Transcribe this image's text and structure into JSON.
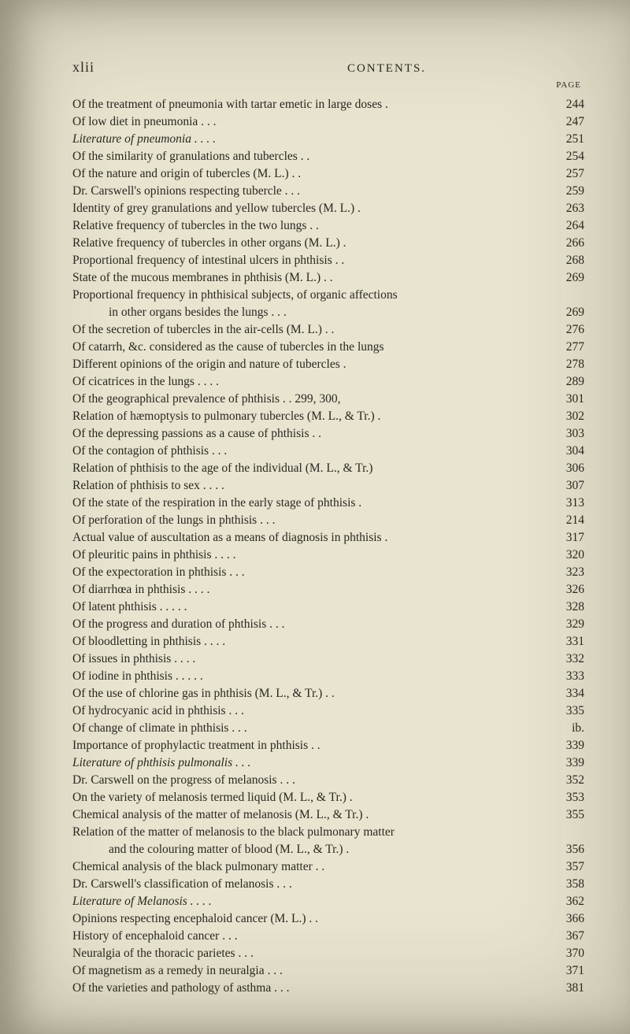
{
  "page": {
    "roman_numeral": "xlii",
    "header": "CONTENTS.",
    "page_label": "PAGE",
    "background_color": "#e8e4d0",
    "text_color": "#2a2820",
    "base_fontsize": 15.5
  },
  "entries": [
    {
      "text": "Of the treatment of pneumonia with tartar emetic in large doses  .",
      "page": "244",
      "italic": false,
      "indent": false
    },
    {
      "text": "Of low diet in pneumonia                 .                     .                    .",
      "page": "247",
      "italic": false,
      "indent": false
    },
    {
      "text": "Literature of pneumonia                 .                    .                    .              .",
      "page": "251",
      "italic": true,
      "indent": false
    },
    {
      "text": "Of the similarity of granulations and tubercles            .              .",
      "page": "254",
      "italic": false,
      "indent": false
    },
    {
      "text": "Of the nature and origin of tubercles   (M. L.)               .              .",
      "page": "257",
      "italic": false,
      "indent": false
    },
    {
      "text": "Dr. Carswell's opinions respecting tubercle         .               .              .",
      "page": "259",
      "italic": false,
      "indent": false
    },
    {
      "text": "Identity of grey granulations and yellow tubercles    (M. L.)        .",
      "page": "263",
      "italic": false,
      "indent": false
    },
    {
      "text": "Relative frequency of tubercles in the two lungs        .              .",
      "page": "264",
      "italic": false,
      "indent": false
    },
    {
      "text": "Relative frequency of tubercles in other organs    (M. L.)         .",
      "page": "266",
      "italic": false,
      "indent": false
    },
    {
      "text": "Proportional frequency of intestinal ulcers in phthisis       .              .",
      "page": "268",
      "italic": false,
      "indent": false
    },
    {
      "text": "State of the mucous membranes in phthisis    (M. L.) .            .",
      "page": "269",
      "italic": false,
      "indent": false
    },
    {
      "text": "Proportional frequency in phthisical subjects, of organic affections",
      "page": "",
      "italic": false,
      "indent": false
    },
    {
      "text": "in other organs besides the lungs        .               .              .",
      "page": "269",
      "italic": false,
      "indent": true
    },
    {
      "text": "Of the secretion of tubercles in the air-cells    (M. L.)       .              .",
      "page": "276",
      "italic": false,
      "indent": false
    },
    {
      "text": "Of catarrh, &c. considered as the cause of tubercles in the lungs",
      "page": "277",
      "italic": false,
      "indent": false
    },
    {
      "text": "Different opinions of the origin and nature of tubercles          .",
      "page": "278",
      "italic": false,
      "indent": false
    },
    {
      "text": "Of cicatrices in the lungs                  .                .               .              .",
      "page": "289",
      "italic": false,
      "indent": false
    },
    {
      "text": "Of the geographical prevalence of phthisis        .          .     299, 300,",
      "page": "301",
      "italic": false,
      "indent": false
    },
    {
      "text": "Relation of hæmoptysis to pulmonary tubercles  (M. L., & Tr.)   .",
      "page": "302",
      "italic": false,
      "indent": false
    },
    {
      "text": "Of the depressing passions as a cause of phthisis         .              .",
      "page": "303",
      "italic": false,
      "indent": false
    },
    {
      "text": "Of the contagion of phthisis                 .                .               .",
      "page": "304",
      "italic": false,
      "indent": false
    },
    {
      "text": "Relation of phthisis to the age of the individual    (M. L., & Tr.)",
      "page": "306",
      "italic": false,
      "indent": false
    },
    {
      "text": "Relation of phthisis to sex             .             .               .              .",
      "page": "307",
      "italic": false,
      "indent": false
    },
    {
      "text": "Of the state of the respiration in the early stage of phthisis       .",
      "page": "313",
      "italic": false,
      "indent": false
    },
    {
      "text": "Of perforation of the lungs in phthisis       .             .               .",
      "page": "214",
      "italic": false,
      "indent": false
    },
    {
      "text": "Actual value of auscultation as a means of diagnosis in phthisis   .",
      "page": "317",
      "italic": false,
      "indent": false
    },
    {
      "text": "Of pleuritic pains in phthisis             .             .               .              .",
      "page": "320",
      "italic": false,
      "indent": false
    },
    {
      "text": "Of the expectoration in phthisis              .               .              .",
      "page": "323",
      "italic": false,
      "indent": false
    },
    {
      "text": "Of diarrhœa in phthisis                 .             .               .              .",
      "page": "326",
      "italic": false,
      "indent": false
    },
    {
      "text": "Of latent phthisis             .             .               .               .              .",
      "page": "328",
      "italic": false,
      "indent": false
    },
    {
      "text": "Of the progress and duration of phthisis        .               .              .",
      "page": "329",
      "italic": false,
      "indent": false
    },
    {
      "text": "Of bloodletting in phthisis             .               .               .              .",
      "page": "331",
      "italic": false,
      "indent": false
    },
    {
      "text": "Of issues in phthisis                  .               .               .              .",
      "page": "332",
      "italic": false,
      "indent": false
    },
    {
      "text": "Of iodine in phthisis         .               .               .               .              .",
      "page": "333",
      "italic": false,
      "indent": false
    },
    {
      "text": "Of the use of chlorine gas in phthisis    (M. L., & Tr.)      .              .",
      "page": "334",
      "italic": false,
      "indent": false
    },
    {
      "text": "Of hydrocyanic acid in phthisis              .               .               .",
      "page": "335",
      "italic": false,
      "indent": false
    },
    {
      "text": "Of change of climate in phthisis              .               .              .",
      "page": "ib.",
      "italic": false,
      "indent": false
    },
    {
      "text": "Importance of prophylactic treatment in phthisis         .              .",
      "page": "339",
      "italic": false,
      "indent": false
    },
    {
      "text": "Literature of phthisis pulmonalis              .               .              .",
      "page": "339",
      "italic": true,
      "indent": false
    },
    {
      "text": "Dr. Carswell on the progress of melanosis        .               .              .",
      "page": "352",
      "italic": false,
      "indent": false
    },
    {
      "text": "On the variety of melanosis termed liquid    (M. L., & Tr.)         .",
      "page": "353",
      "italic": false,
      "indent": false
    },
    {
      "text": "Chemical analysis of the matter of melanosis    (M. L., & Tr.)    .",
      "page": "355",
      "italic": false,
      "indent": false
    },
    {
      "text": "Relation of the matter of melanosis to the black pulmonary matter",
      "page": "",
      "italic": false,
      "indent": false
    },
    {
      "text": "and the colouring matter of blood    (M. L., & Tr.)          .",
      "page": "356",
      "italic": false,
      "indent": true
    },
    {
      "text": "Chemical analysis of the black pulmonary matter          .              .",
      "page": "357",
      "italic": false,
      "indent": false
    },
    {
      "text": "Dr. Carswell's classification of melanosis        .               .              .",
      "page": "358",
      "italic": false,
      "indent": false
    },
    {
      "text": "Literature of Melanosis                 .               .               .              .",
      "page": "362",
      "italic": true,
      "indent": false
    },
    {
      "text": "Opinions respecting encephaloid cancer    (M. L.)         .              .",
      "page": "366",
      "italic": false,
      "indent": false
    },
    {
      "text": "History of encephaloid cancer              .               .              .",
      "page": "367",
      "italic": false,
      "indent": false
    },
    {
      "text": "Neuralgia of the thoracic parietes              .               .              .",
      "page": "370",
      "italic": false,
      "indent": false
    },
    {
      "text": "Of magnetism as a remedy in neuralgia           .               .              .",
      "page": "371",
      "italic": false,
      "indent": false
    },
    {
      "text": "Of the varieties and pathology of asthma      .               .              .",
      "page": "381",
      "italic": false,
      "indent": false
    }
  ]
}
